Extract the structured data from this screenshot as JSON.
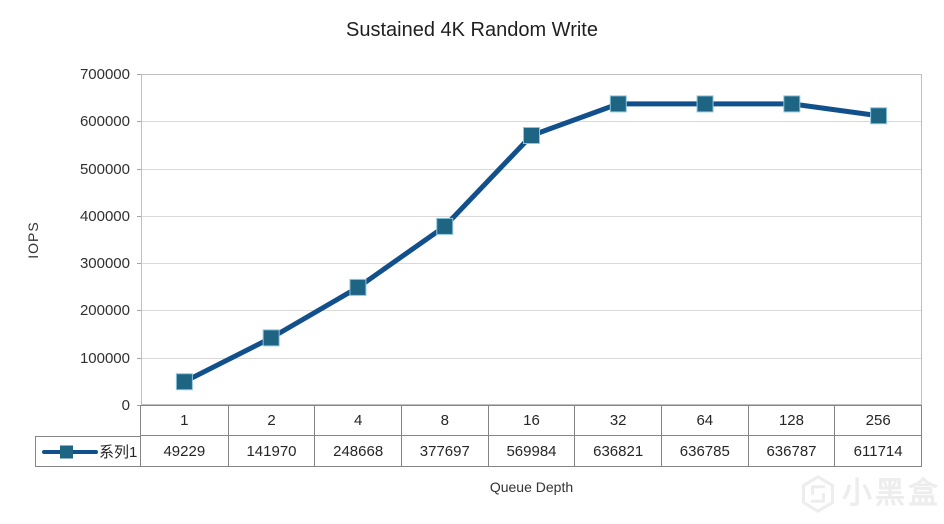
{
  "chart_data": {
    "type": "line",
    "title": "Sustained 4K Random Write",
    "xlabel": "Queue Depth",
    "ylabel": "IOPS",
    "categories": [
      "1",
      "2",
      "4",
      "8",
      "16",
      "32",
      "64",
      "128",
      "256"
    ],
    "series": [
      {
        "name": "系列1",
        "values": [
          49229,
          141970,
          248668,
          377697,
          569984,
          636821,
          636785,
          636787,
          611714
        ]
      }
    ],
    "ylim": [
      0,
      700000
    ],
    "ytick_step": 100000,
    "yticks": [
      0,
      100000,
      200000,
      300000,
      400000,
      500000,
      600000,
      700000
    ],
    "grid": "horizontal",
    "legend_position": "data-table-left",
    "marker_shape": "square",
    "colors": {
      "line": "#12508C",
      "marker": "#1E6483",
      "marker_edge": "#8EC6DD",
      "gridline": "#D9D9D9",
      "plot_border": "#BFBFBF",
      "tick": "#A6A6A6",
      "table_border": "#858585",
      "text": "#262626",
      "watermark": "#EDEDED"
    }
  },
  "watermark": {
    "text": "小黑盒",
    "logo": "heybox-hexagon-logo"
  }
}
